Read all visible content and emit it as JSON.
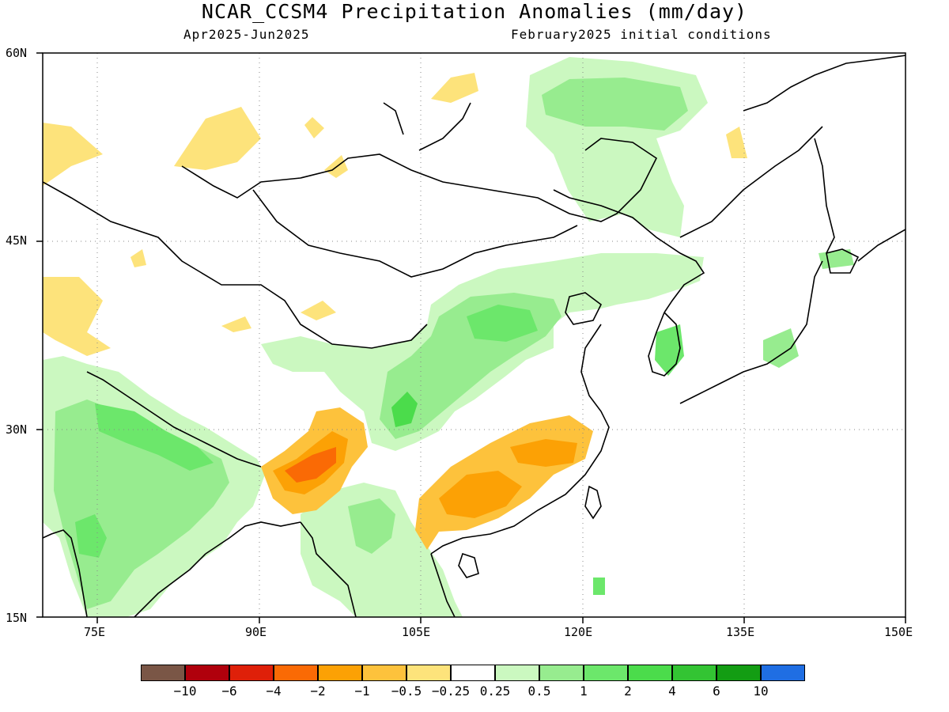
{
  "title": "NCAR_CCSM4 Precipitation Anomalies (mm/day)",
  "subtitle_left": "Apr2025-Jun2025",
  "subtitle_right": "February2025 initial conditions",
  "lat_labels": [
    "60N",
    "45N",
    "30N",
    "15N"
  ],
  "lon_labels": [
    "75E",
    "90E",
    "105E",
    "120E",
    "135E",
    "150E"
  ],
  "colorbar": {
    "colors": [
      "#7a5646",
      "#b0000c",
      "#df2009",
      "#fa6a05",
      "#fca105",
      "#fdc23c",
      "#fde37b",
      "#ffffff",
      "#cbf8c0",
      "#97ec8f",
      "#6ce76b",
      "#4bdc4b",
      "#33c433",
      "#139d13",
      "#1f6ee3"
    ],
    "labels": [
      "-10",
      "-6",
      "-4",
      "-2",
      "-1",
      "-0.5",
      "-0.25",
      "0.25",
      "0.5",
      "1",
      "2",
      "4",
      "6",
      "10"
    ]
  },
  "map": {
    "lon_range": [
      70,
      150
    ],
    "lat_range": [
      15,
      60
    ],
    "grid": "dotted"
  }
}
